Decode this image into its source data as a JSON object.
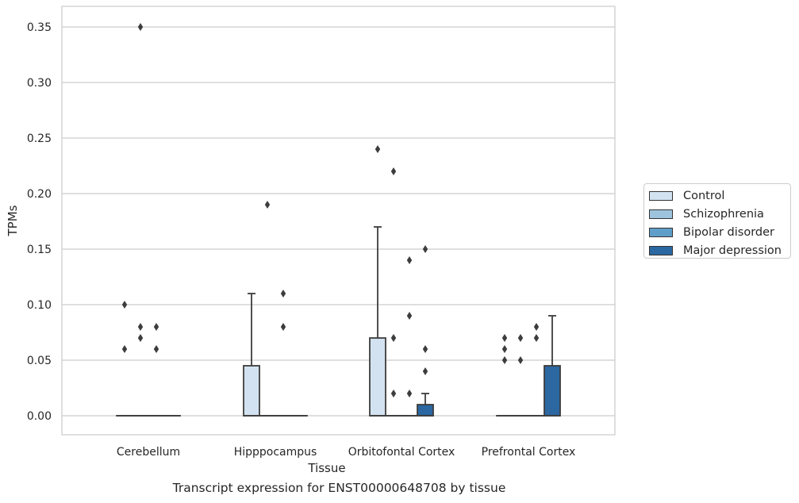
{
  "chart_data": {
    "type": "box",
    "caption": "Transcript expression for ENST00000648708 by tissue",
    "xlabel": "Tissue",
    "ylabel": "TPMs",
    "ylim": [
      -0.017,
      0.368
    ],
    "yticks": [
      "0.00",
      "0.05",
      "0.10",
      "0.15",
      "0.20",
      "0.25",
      "0.30",
      "0.35"
    ],
    "grid": true,
    "legend_position": "right",
    "categories": [
      "Cerebellum",
      "Hipppocampus",
      "Orbitofontal Cortex",
      "Prefrontal Cortex"
    ],
    "series": [
      {
        "name": "Control",
        "color": "#d3e2f0"
      },
      {
        "name": "Schizophrenia",
        "color": "#9ec4dd"
      },
      {
        "name": "Bipolar disorder",
        "color": "#5f9ec9"
      },
      {
        "name": "Major depression",
        "color": "#2b67a1"
      }
    ],
    "boxes": [
      {
        "category": "Cerebellum",
        "series": "Control",
        "q1": 0,
        "median": 0,
        "q3": 0,
        "whisker_low": 0,
        "whisker_high": 0,
        "outliers": [
          0.06,
          0.1
        ]
      },
      {
        "category": "Cerebellum",
        "series": "Schizophrenia",
        "q1": 0,
        "median": 0,
        "q3": 0,
        "whisker_low": 0,
        "whisker_high": 0,
        "outliers": [
          0.07,
          0.08,
          0.35
        ]
      },
      {
        "category": "Cerebellum",
        "series": "Bipolar disorder",
        "q1": 0,
        "median": 0,
        "q3": 0,
        "whisker_low": 0,
        "whisker_high": 0,
        "outliers": [
          0.06,
          0.08
        ]
      },
      {
        "category": "Cerebellum",
        "series": "Major depression",
        "q1": 0,
        "median": 0,
        "q3": 0,
        "whisker_low": 0,
        "whisker_high": 0,
        "outliers": []
      },
      {
        "category": "Hipppocampus",
        "series": "Control",
        "q1": 0,
        "median": 0,
        "q3": 0.045,
        "whisker_low": 0,
        "whisker_high": 0.11,
        "outliers": []
      },
      {
        "category": "Hipppocampus",
        "series": "Schizophrenia",
        "q1": 0,
        "median": 0,
        "q3": 0,
        "whisker_low": 0,
        "whisker_high": 0,
        "outliers": [
          0.19
        ]
      },
      {
        "category": "Hipppocampus",
        "series": "Bipolar disorder",
        "q1": 0,
        "median": 0,
        "q3": 0,
        "whisker_low": 0,
        "whisker_high": 0,
        "outliers": [
          0.08,
          0.11
        ]
      },
      {
        "category": "Hipppocampus",
        "series": "Major depression",
        "q1": 0,
        "median": 0,
        "q3": 0,
        "whisker_low": 0,
        "whisker_high": 0,
        "outliers": []
      },
      {
        "category": "Orbitofontal Cortex",
        "series": "Control",
        "q1": 0,
        "median": 0,
        "q3": 0.07,
        "whisker_low": 0,
        "whisker_high": 0.17,
        "outliers": [
          0.24
        ]
      },
      {
        "category": "Orbitofontal Cortex",
        "series": "Schizophrenia",
        "q1": 0,
        "median": 0,
        "q3": 0,
        "whisker_low": 0,
        "whisker_high": 0,
        "outliers": [
          0.02,
          0.07,
          0.22
        ]
      },
      {
        "category": "Orbitofontal Cortex",
        "series": "Bipolar disorder",
        "q1": 0,
        "median": 0,
        "q3": 0,
        "whisker_low": 0,
        "whisker_high": 0,
        "outliers": [
          0.02,
          0.09,
          0.14
        ]
      },
      {
        "category": "Orbitofontal Cortex",
        "series": "Major depression",
        "q1": 0,
        "median": 0,
        "q3": 0.01,
        "whisker_low": 0,
        "whisker_high": 0.02,
        "outliers": [
          0.04,
          0.06,
          0.15
        ]
      },
      {
        "category": "Prefrontal Cortex",
        "series": "Control",
        "q1": 0,
        "median": 0,
        "q3": 0,
        "whisker_low": 0,
        "whisker_high": 0,
        "outliers": [
          0.05,
          0.06,
          0.07
        ]
      },
      {
        "category": "Prefrontal Cortex",
        "series": "Schizophrenia",
        "q1": 0,
        "median": 0,
        "q3": 0,
        "whisker_low": 0,
        "whisker_high": 0,
        "outliers": [
          0.05,
          0.07
        ]
      },
      {
        "category": "Prefrontal Cortex",
        "series": "Bipolar disorder",
        "q1": 0,
        "median": 0,
        "q3": 0,
        "whisker_low": 0,
        "whisker_high": 0,
        "outliers": [
          0.07,
          0.08
        ]
      },
      {
        "category": "Prefrontal Cortex",
        "series": "Major depression",
        "q1": 0,
        "median": 0,
        "q3": 0.045,
        "whisker_low": 0,
        "whisker_high": 0.09,
        "outliers": []
      }
    ]
  }
}
